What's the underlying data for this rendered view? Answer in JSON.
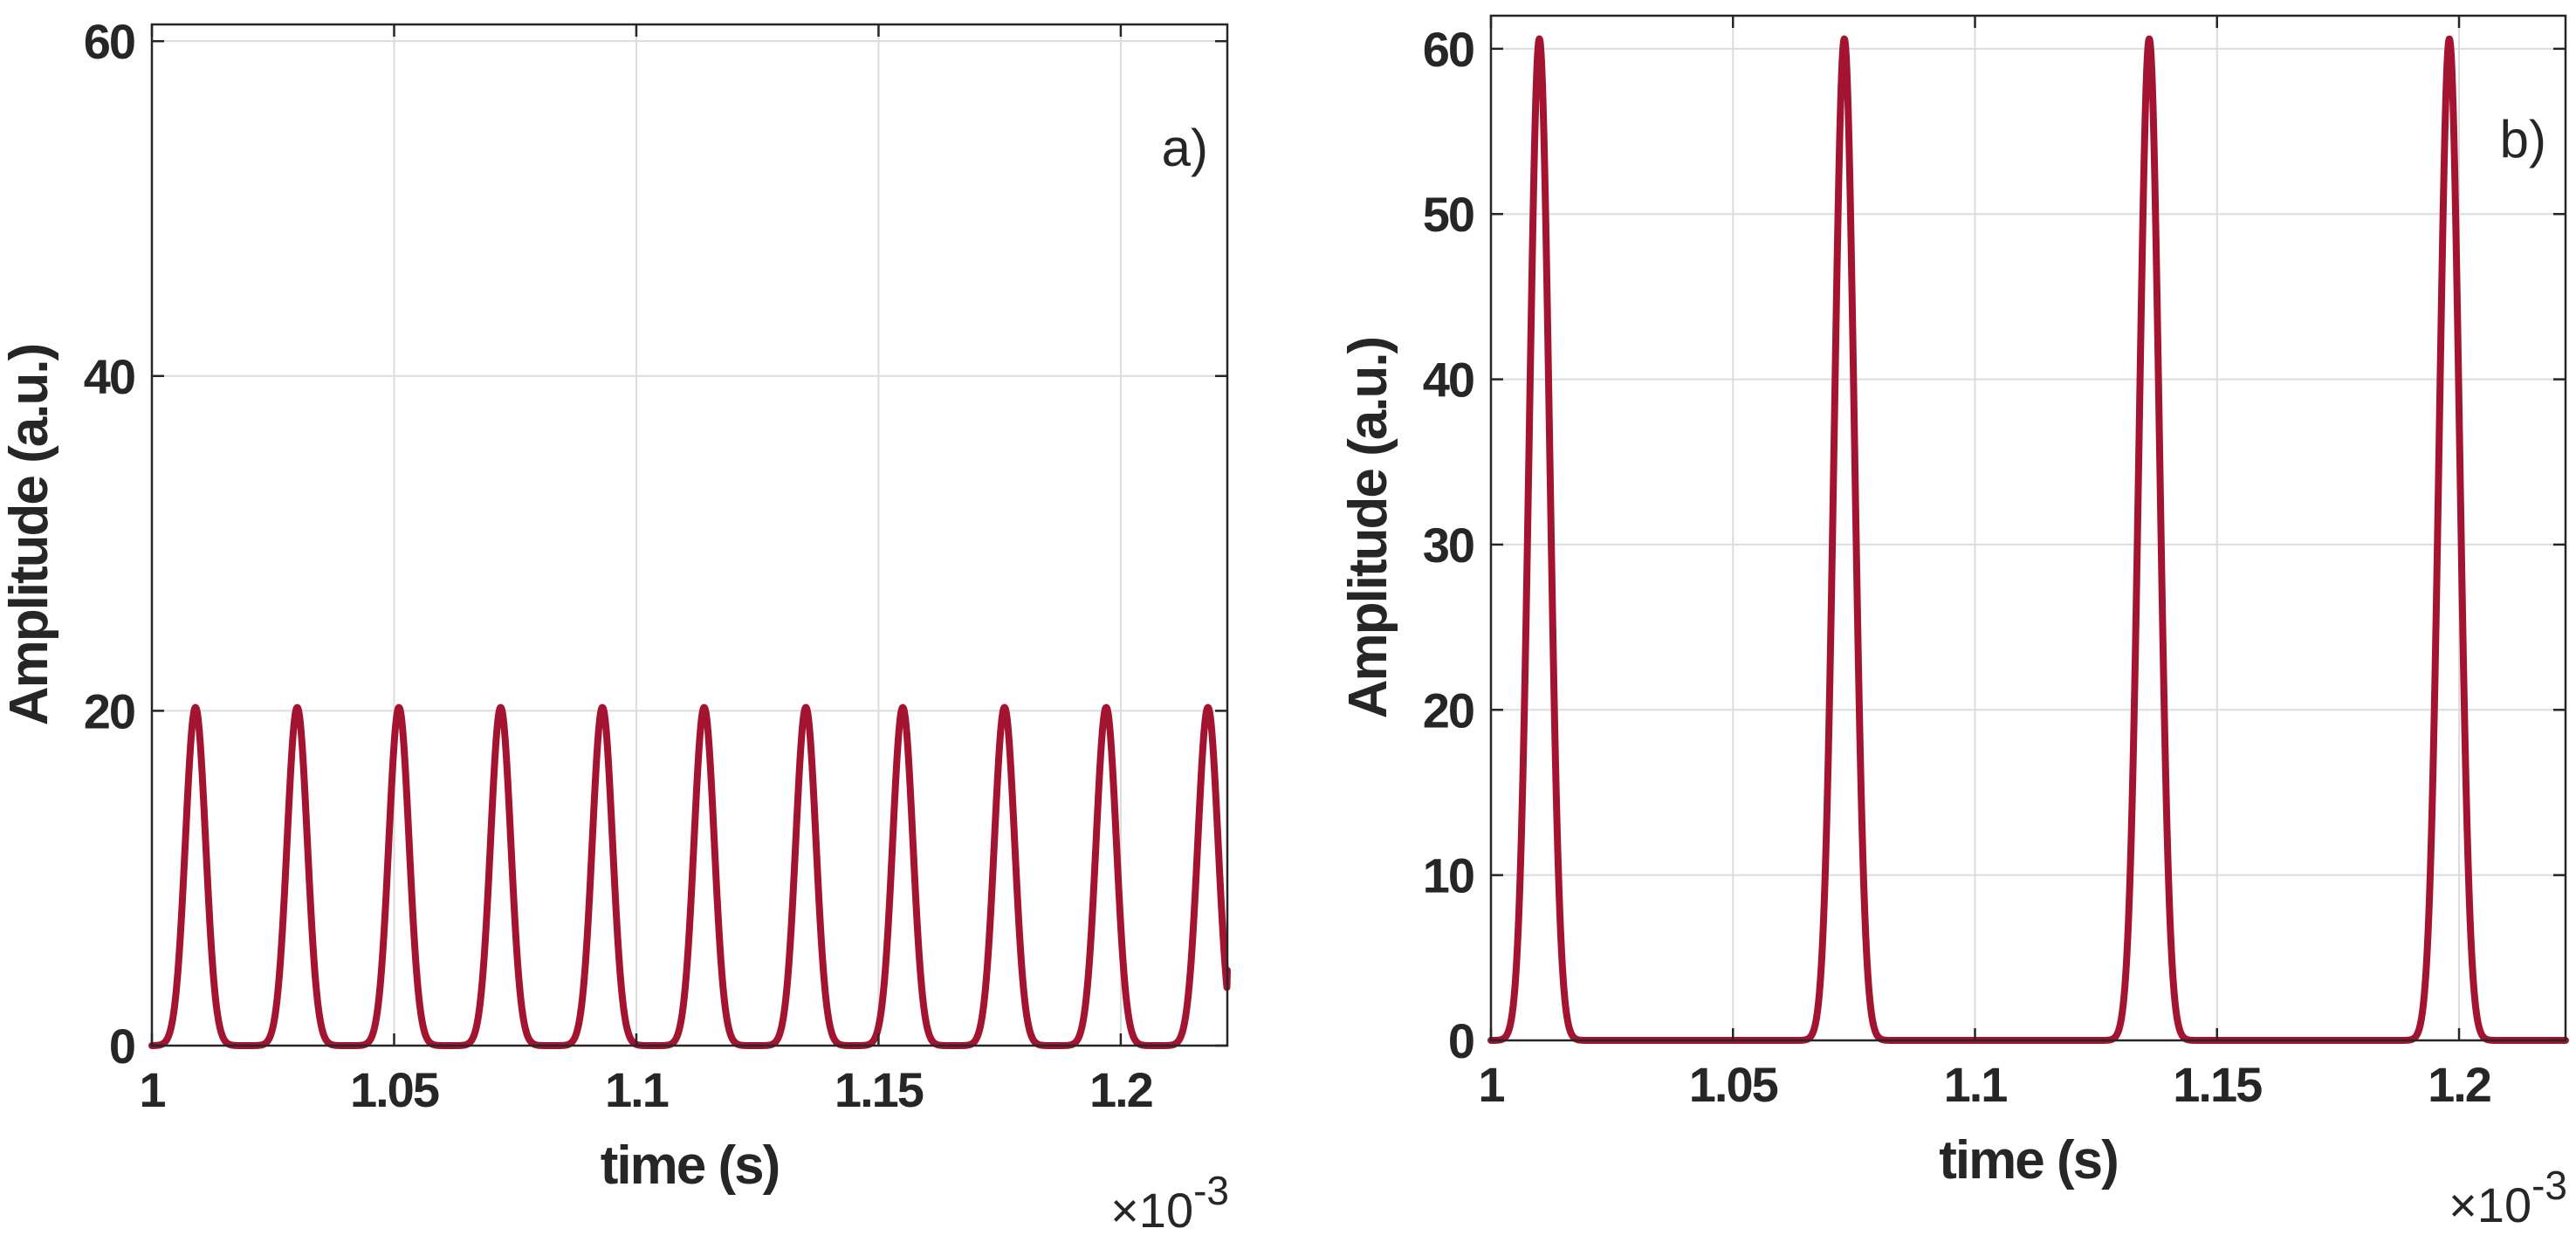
{
  "chart_data": [
    {
      "type": "line",
      "panel_label": "a)",
      "xlabel": "time (s)",
      "ylabel": "Amplitude (a.u.)",
      "x_exponent_label": "×10",
      "x_exponent_power": "-3",
      "xlim": [
        1.0,
        1.222
      ],
      "ylim": [
        0,
        61
      ],
      "xticks": [
        1,
        1.05,
        1.1,
        1.15,
        1.2
      ],
      "xtick_labels": [
        "1",
        "1.05",
        "1.1",
        "1.15",
        "1.2"
      ],
      "yticks": [
        0,
        20,
        40,
        60
      ],
      "ytick_labels": [
        "0",
        "20",
        "40",
        "60"
      ],
      "grid": true,
      "color": "#a2142f",
      "series": [
        {
          "pulse_peak_amplitude": 20.2,
          "pulse_peak_times": [
            1.009,
            1.03,
            1.051,
            1.072,
            1.093,
            1.114,
            1.135,
            1.155,
            1.176,
            1.197,
            1.218
          ],
          "pulse_half_width": 0.0025,
          "end_value": 4.5
        }
      ]
    },
    {
      "type": "line",
      "panel_label": "b)",
      "xlabel": "time (s)",
      "ylabel": "Amplitude (a.u.)",
      "x_exponent_label": "×10",
      "x_exponent_power": "-3",
      "xlim": [
        1.0,
        1.222
      ],
      "ylim": [
        0,
        62
      ],
      "xticks": [
        1,
        1.05,
        1.1,
        1.15,
        1.2
      ],
      "xtick_labels": [
        "1",
        "1.05",
        "1.1",
        "1.15",
        "1.2"
      ],
      "yticks": [
        0,
        10,
        20,
        30,
        40,
        50,
        60
      ],
      "ytick_labels": [
        "0",
        "10",
        "20",
        "30",
        "40",
        "50",
        "60"
      ],
      "grid": true,
      "color": "#a2142f",
      "series": [
        {
          "pulse_peak_amplitude": 60.6,
          "pulse_peak_times": [
            1.01,
            1.073,
            1.136,
            1.198
          ],
          "pulse_half_width": 0.0025,
          "end_value": 0
        }
      ]
    }
  ]
}
